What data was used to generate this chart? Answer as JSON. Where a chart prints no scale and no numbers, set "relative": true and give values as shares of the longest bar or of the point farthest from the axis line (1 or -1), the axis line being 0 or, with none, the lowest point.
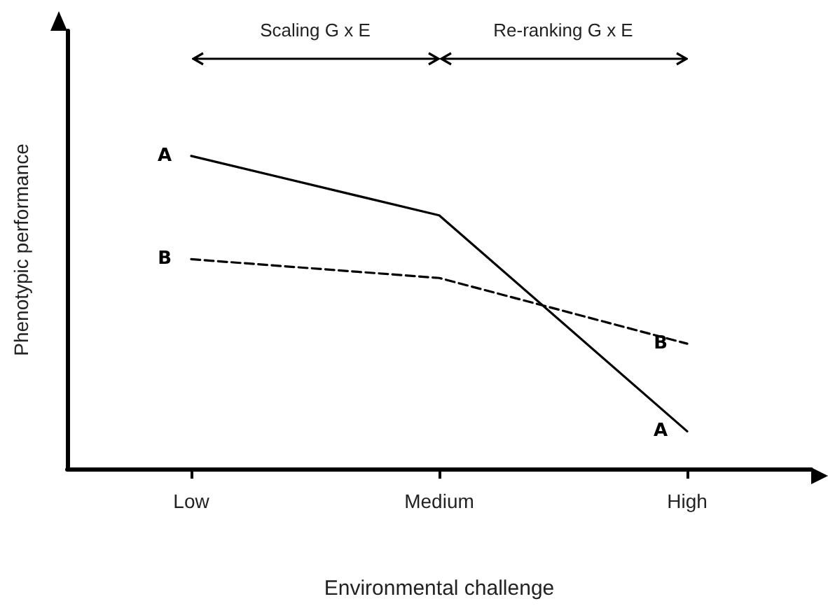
{
  "chart_data": {
    "type": "line",
    "relative": true,
    "xlabel": "Environmental challenge",
    "ylabel": "Phenotypic performance",
    "categories": [
      "Low",
      "Medium",
      "High"
    ],
    "series": [
      {
        "name": "A",
        "color": "#000000",
        "line_style": "solid",
        "values": [
          1,
          0.81,
          0.12
        ]
      },
      {
        "name": "B",
        "color": "#000000",
        "line_style": "dashed",
        "values": [
          0.67,
          0.61,
          0.4
        ]
      }
    ],
    "annotations": [
      "Scaling G x E",
      "Re-ranking G x E"
    ],
    "marker": "none",
    "grid": false,
    "legend": false
  }
}
